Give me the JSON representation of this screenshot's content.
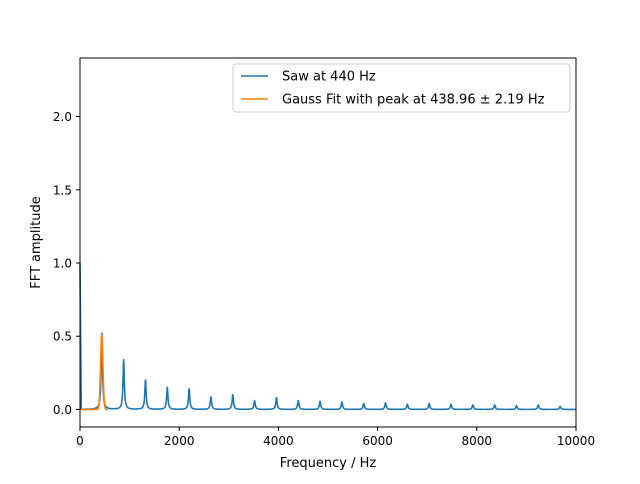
{
  "chart_data": {
    "type": "line",
    "xlabel": "Frequency / Hz",
    "ylabel": "FFT amplitude",
    "xlim": [
      0,
      10000
    ],
    "ylim": [
      -0.12,
      2.4
    ],
    "xticks": [
      0,
      2000,
      4000,
      6000,
      8000,
      10000
    ],
    "xtick_labels": [
      "0",
      "2000",
      "4000",
      "6000",
      "8000",
      "10000"
    ],
    "yticks": [
      0.0,
      0.5,
      1.0,
      1.5,
      2.0
    ],
    "ytick_labels": [
      "0.0",
      "0.5",
      "1.0",
      "1.5",
      "2.0"
    ],
    "grid": false,
    "legend_position": "upper right",
    "series": [
      {
        "name": "Saw at 440 Hz",
        "color": "#1f77b4",
        "fundamental": 440,
        "harmonic_amplitudes": [
          0.52,
          0.34,
          0.2,
          0.15,
          0.14,
          0.085,
          0.1,
          0.06,
          0.08,
          0.06,
          0.055,
          0.05,
          0.04,
          0.045,
          0.035,
          0.04,
          0.035,
          0.03,
          0.03,
          0.025,
          0.03,
          0.02
        ],
        "dc_spike": 1.0
      },
      {
        "name": "Gauss Fit with peak at 438.96 ± 2.19 Hz",
        "color": "#ff7f0e",
        "peak_x": 438.96,
        "peak_y": 0.51,
        "x_range": [
          0,
          560
        ]
      }
    ]
  }
}
